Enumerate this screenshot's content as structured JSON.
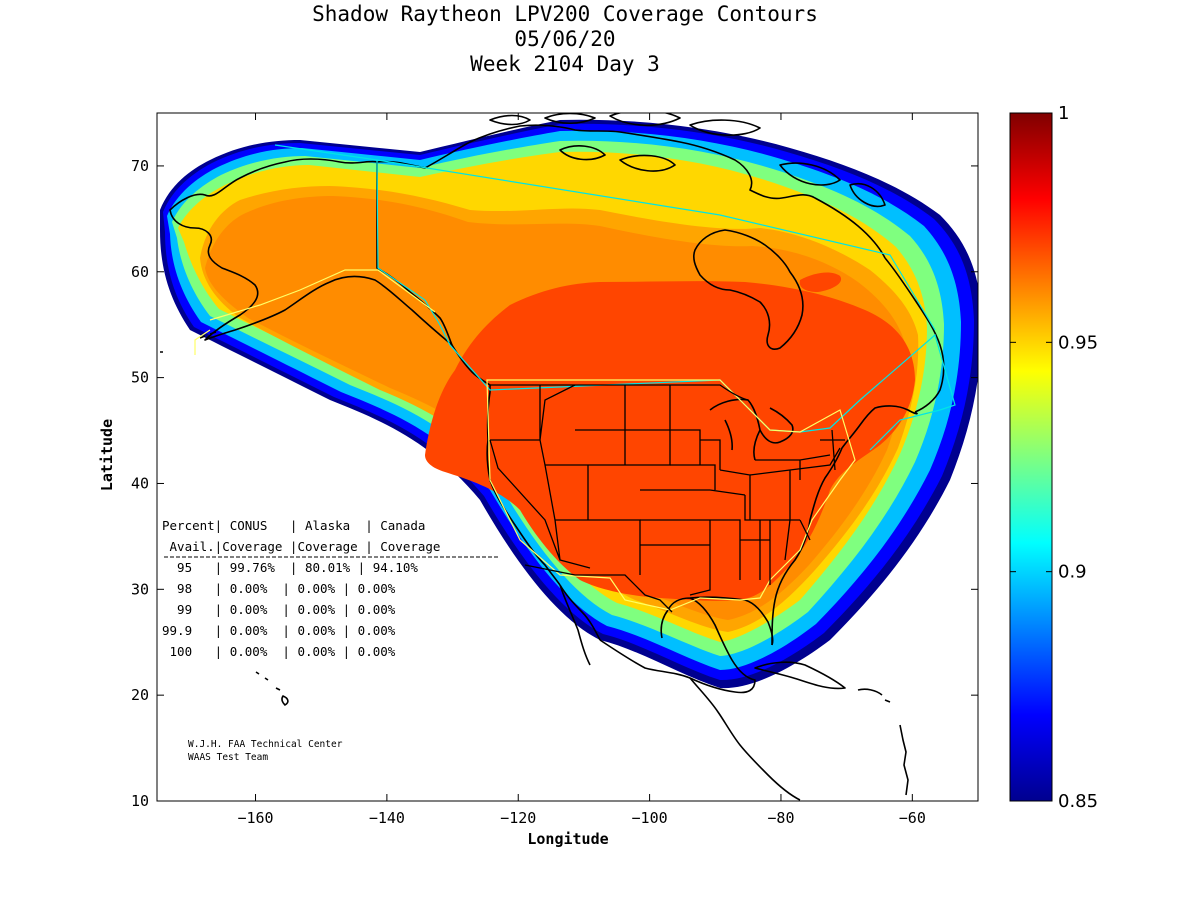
{
  "title_lines": [
    "Shadow Raytheon LPV200 Coverage Contours",
    "05/06/20",
    "Week 2104 Day 3"
  ],
  "axes": {
    "xlabel": "Longitude",
    "ylabel": "Latitude",
    "xlim": [
      -175,
      -50
    ],
    "ylim": [
      10,
      75
    ],
    "xticks": [
      -160,
      -140,
      -120,
      -100,
      -80,
      -60
    ],
    "yticks": [
      10,
      20,
      30,
      40,
      50,
      60,
      70
    ]
  },
  "colorbar": {
    "min": 0.85,
    "max": 1,
    "labels": [
      "1",
      "0.95",
      "0.9",
      "0.85"
    ],
    "label_values": [
      1,
      0.95,
      0.9,
      0.85
    ],
    "colormap": "jet"
  },
  "coverage_table": {
    "header_line1": "Percent| CONUS   | Alaska  | Canada",
    "header_line2": " Avail.|Coverage |Coverage | Coverage",
    "rows": [
      "  95   | 99.76%  | 80.01% | 94.10%",
      "  98   | 0.00%  | 0.00% | 0.00%",
      "  99   | 0.00%  | 0.00% | 0.00%",
      "99.9   | 0.00%  | 0.00% | 0.00%",
      " 100   | 0.00%  | 0.00% | 0.00%"
    ]
  },
  "credits": [
    "W.J.H. FAA Technical Center",
    "WAAS Test Team"
  ],
  "colors": {
    "level_095_097": "#ff4500",
    "level_094_095": "#ff8c00",
    "level_093_094": "#ffa500",
    "level_092_093": "#ffd700",
    "edge_cyan": "#00ffff",
    "edge_blue": "#0000cd",
    "region_outline": "#00e5e5",
    "conus_outline": "#ffff66"
  }
}
